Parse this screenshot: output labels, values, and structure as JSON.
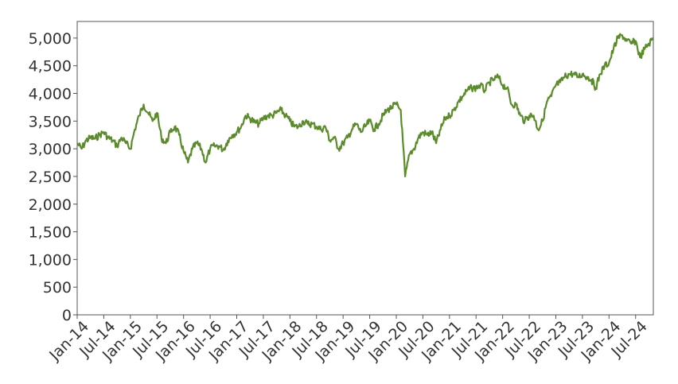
{
  "chart_data": {
    "type": "line",
    "title": "",
    "xlabel": "",
    "ylabel": "",
    "ylim": [
      0,
      5300
    ],
    "yticks": [
      0,
      500,
      1000,
      1500,
      2000,
      2500,
      3000,
      3500,
      4000,
      4500,
      5000
    ],
    "yticklabels": [
      "0",
      "500",
      "1,000",
      "1,500",
      "2,000",
      "2,500",
      "3,000",
      "3,500",
      "4,000",
      "4,500",
      "5,000"
    ],
    "xlim": [
      "2014-01",
      "2024-11"
    ],
    "xticks": [
      "2014-01",
      "2014-07",
      "2015-01",
      "2015-07",
      "2016-01",
      "2016-07",
      "2017-01",
      "2017-07",
      "2018-01",
      "2018-07",
      "2019-01",
      "2019-07",
      "2020-01",
      "2020-07",
      "2021-01",
      "2021-07",
      "2022-01",
      "2022-07",
      "2023-01",
      "2023-07",
      "2024-01",
      "2024-07"
    ],
    "xticklabels": [
      "Jan-14",
      "Jul-14",
      "Jan-15",
      "Jul-15",
      "Jan-16",
      "Jul-16",
      "Jan-17",
      "Jul-17",
      "Jan-18",
      "Jul-18",
      "Jan-19",
      "Jul-19",
      "Jan-20",
      "Jul-20",
      "Jan-21",
      "Jul-21",
      "Jan-22",
      "Jul-22",
      "Jan-23",
      "Jul-23",
      "Jan-24",
      "Jul-24"
    ],
    "grid": false,
    "series": [
      {
        "color": "#5b8c2a",
        "x": [
          "2014-01",
          "2014-02",
          "2014-03",
          "2014-04",
          "2014-05",
          "2014-06",
          "2014-07",
          "2014-08",
          "2014-09",
          "2014-10",
          "2014-11",
          "2014-12",
          "2015-01",
          "2015-02",
          "2015-03",
          "2015-04",
          "2015-05",
          "2015-06",
          "2015-07",
          "2015-08",
          "2015-09",
          "2015-10",
          "2015-11",
          "2015-12",
          "2016-01",
          "2016-02",
          "2016-03",
          "2016-04",
          "2016-05",
          "2016-06",
          "2016-07",
          "2016-08",
          "2016-09",
          "2016-10",
          "2016-11",
          "2016-12",
          "2017-01",
          "2017-02",
          "2017-03",
          "2017-04",
          "2017-05",
          "2017-06",
          "2017-07",
          "2017-08",
          "2017-09",
          "2017-10",
          "2017-11",
          "2017-12",
          "2018-01",
          "2018-02",
          "2018-03",
          "2018-04",
          "2018-05",
          "2018-06",
          "2018-07",
          "2018-08",
          "2018-09",
          "2018-10",
          "2018-11",
          "2018-12",
          "2019-01",
          "2019-02",
          "2019-03",
          "2019-04",
          "2019-05",
          "2019-06",
          "2019-07",
          "2019-08",
          "2019-09",
          "2019-10",
          "2019-11",
          "2019-12",
          "2020-01",
          "2020-02",
          "2020-03",
          "2020-04",
          "2020-05",
          "2020-06",
          "2020-07",
          "2020-08",
          "2020-09",
          "2020-10",
          "2020-11",
          "2020-12",
          "2021-01",
          "2021-02",
          "2021-03",
          "2021-04",
          "2021-05",
          "2021-06",
          "2021-07",
          "2021-08",
          "2021-09",
          "2021-10",
          "2021-11",
          "2021-12",
          "2022-01",
          "2022-02",
          "2022-03",
          "2022-04",
          "2022-05",
          "2022-06",
          "2022-07",
          "2022-08",
          "2022-09",
          "2022-10",
          "2022-11",
          "2022-12",
          "2023-01",
          "2023-02",
          "2023-03",
          "2023-04",
          "2023-05",
          "2023-06",
          "2023-07",
          "2023-08",
          "2023-09",
          "2023-10",
          "2023-11",
          "2023-12",
          "2024-01",
          "2024-02",
          "2024-03",
          "2024-04",
          "2024-05",
          "2024-06",
          "2024-07",
          "2024-08",
          "2024-09",
          "2024-10",
          "2024-11"
        ],
        "values": [
          3100,
          3000,
          3150,
          3200,
          3180,
          3250,
          3300,
          3200,
          3150,
          3050,
          3200,
          3100,
          3000,
          3350,
          3600,
          3800,
          3650,
          3500,
          3650,
          3200,
          3100,
          3300,
          3400,
          3250,
          2950,
          2750,
          3000,
          3100,
          3000,
          2750,
          3000,
          3050,
          3050,
          2980,
          3150,
          3250,
          3300,
          3400,
          3600,
          3550,
          3480,
          3450,
          3550,
          3600,
          3600,
          3650,
          3700,
          3600,
          3500,
          3400,
          3400,
          3500,
          3450,
          3450,
          3400,
          3350,
          3400,
          3150,
          3200,
          3000,
          3100,
          3200,
          3350,
          3450,
          3300,
          3400,
          3500,
          3350,
          3450,
          3600,
          3700,
          3750,
          3800,
          3700,
          2500,
          2900,
          3000,
          3200,
          3300,
          3250,
          3300,
          3100,
          3350,
          3550,
          3600,
          3700,
          3850,
          3950,
          4050,
          4100,
          4100,
          4150,
          4050,
          4200,
          4250,
          4300,
          4150,
          4100,
          3800,
          3800,
          3600,
          3500,
          3600,
          3600,
          3350,
          3500,
          3850,
          3950,
          4150,
          4200,
          4300,
          4350,
          4350,
          4300,
          4350,
          4300,
          4250,
          4100,
          4350,
          4500,
          4550,
          4800,
          5000,
          5050,
          4950,
          4900,
          4950,
          4650,
          4800,
          4900,
          5000
        ]
      }
    ]
  }
}
